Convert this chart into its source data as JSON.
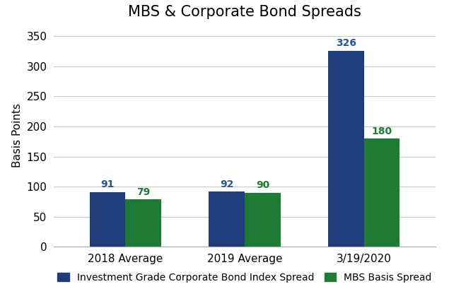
{
  "title": "MBS & Corporate Bond Spreads",
  "categories": [
    "2018 Average",
    "2019 Average",
    "3/19/2020"
  ],
  "series": [
    {
      "label": "Investment Grade Corporate Bond Index Spread",
      "values": [
        91,
        92,
        326
      ],
      "color": "#1F3D7A"
    },
    {
      "label": "MBS Basis Spread",
      "values": [
        79,
        90,
        180
      ],
      "color": "#1E7B34"
    }
  ],
  "ylabel": "Basis Points",
  "ylim": [
    0,
    370
  ],
  "yticks": [
    0,
    50,
    100,
    150,
    200,
    250,
    300,
    350
  ],
  "bar_width": 0.3,
  "label_color_corporate": "#2155A0",
  "label_color_mbs": "#1E7B34",
  "title_fontsize": 15,
  "axis_fontsize": 11,
  "tick_fontsize": 11,
  "label_fontsize": 10,
  "legend_fontsize": 10,
  "background_color": "#FFFFFF",
  "grid_color": "#C8C8C8"
}
